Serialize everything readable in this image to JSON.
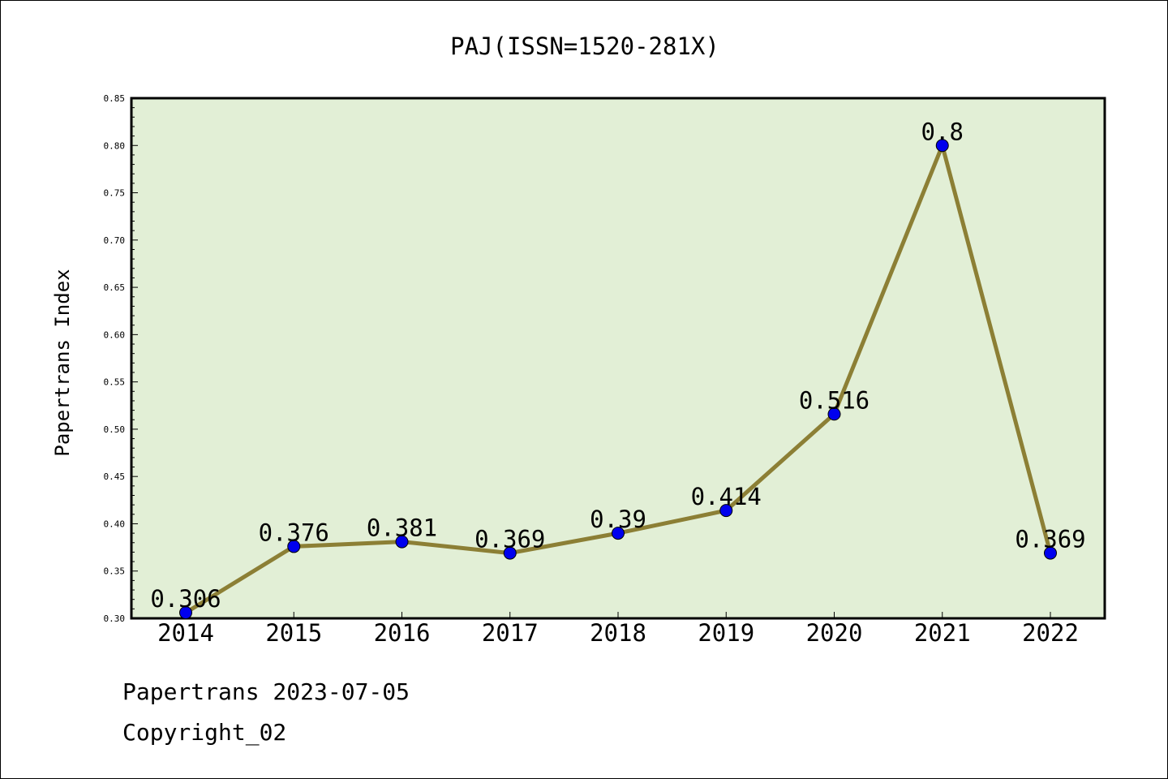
{
  "chart_data": {
    "type": "line",
    "title": "PAJ(ISSN=1520-281X)",
    "xlabel": "",
    "ylabel": "Papertrans Index",
    "categories": [
      "2014",
      "2015",
      "2016",
      "2017",
      "2018",
      "2019",
      "2020",
      "2021",
      "2022"
    ],
    "series": [
      {
        "values": [
          0.306,
          0.376,
          0.381,
          0.369,
          0.39,
          0.414,
          0.516,
          0.8,
          0.369
        ],
        "data_labels": [
          "0.306",
          "0.376",
          "0.381",
          "0.369",
          "0.39",
          "0.414",
          "0.516",
          "0.8",
          "0.369"
        ]
      }
    ],
    "ylim": [
      0.3,
      0.85
    ],
    "yticks": [
      "0.30",
      "0.35",
      "0.40",
      "0.45",
      "0.50",
      "0.55",
      "0.60",
      "0.65",
      "0.70",
      "0.75",
      "0.80",
      "0.85"
    ],
    "grid": false,
    "legend": "none",
    "colors": {
      "plot_background": "#e2efd6",
      "line": "#8c7f35",
      "marker": "#0000ee"
    }
  },
  "footer": {
    "source": "Papertrans 2023-07-05",
    "copyright": "Copyright_02"
  }
}
